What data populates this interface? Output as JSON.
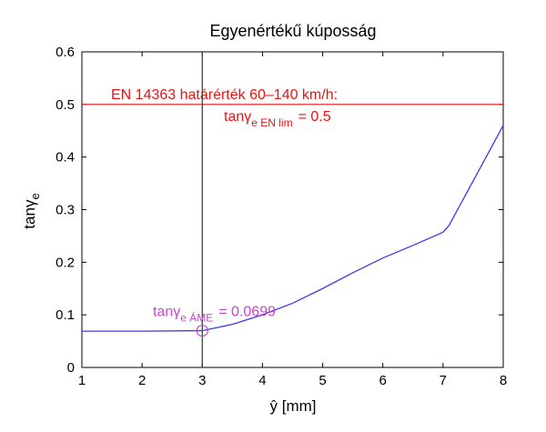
{
  "chart_data": {
    "type": "line",
    "title": "Egyenértékű kúposság",
    "xlabel": "ŷ [mm]",
    "ylabel": {
      "text": "tanγ",
      "subscript": "e"
    },
    "series": [
      {
        "color": "#3a3aee",
        "x": [
          1,
          2,
          3,
          3.5,
          4,
          4.5,
          5,
          5.5,
          6,
          6.5,
          7,
          7.1,
          8
        ],
        "values": [
          0.069,
          0.069,
          0.0699,
          0.082,
          0.1,
          0.122,
          0.15,
          0.18,
          0.208,
          0.232,
          0.257,
          0.27,
          0.46
        ]
      }
    ],
    "xlim": [
      1,
      8
    ],
    "xticks": [
      1,
      2,
      3,
      4,
      5,
      6,
      7,
      8
    ],
    "ylim": [
      0,
      0.6
    ],
    "yticks": [
      0,
      0.1,
      0.2,
      0.3,
      0.4,
      0.5,
      0.6
    ],
    "grid": false,
    "reference_line": {
      "value": 0.5,
      "color": "#ee1111",
      "label": "EN 14363  határérték 60–140 km/h:",
      "annotation": {
        "symbol": "tanγ",
        "subscript": "e EN lim",
        "text": "= 0.5"
      }
    },
    "vline": {
      "x": 3,
      "color": "#333333"
    },
    "marker": {
      "x": 3,
      "y": 0.0699,
      "color": "#cc44cc",
      "annotation": {
        "symbol": "tanγ",
        "subscript": "e ÁME",
        "text": "= 0.0699"
      }
    }
  }
}
